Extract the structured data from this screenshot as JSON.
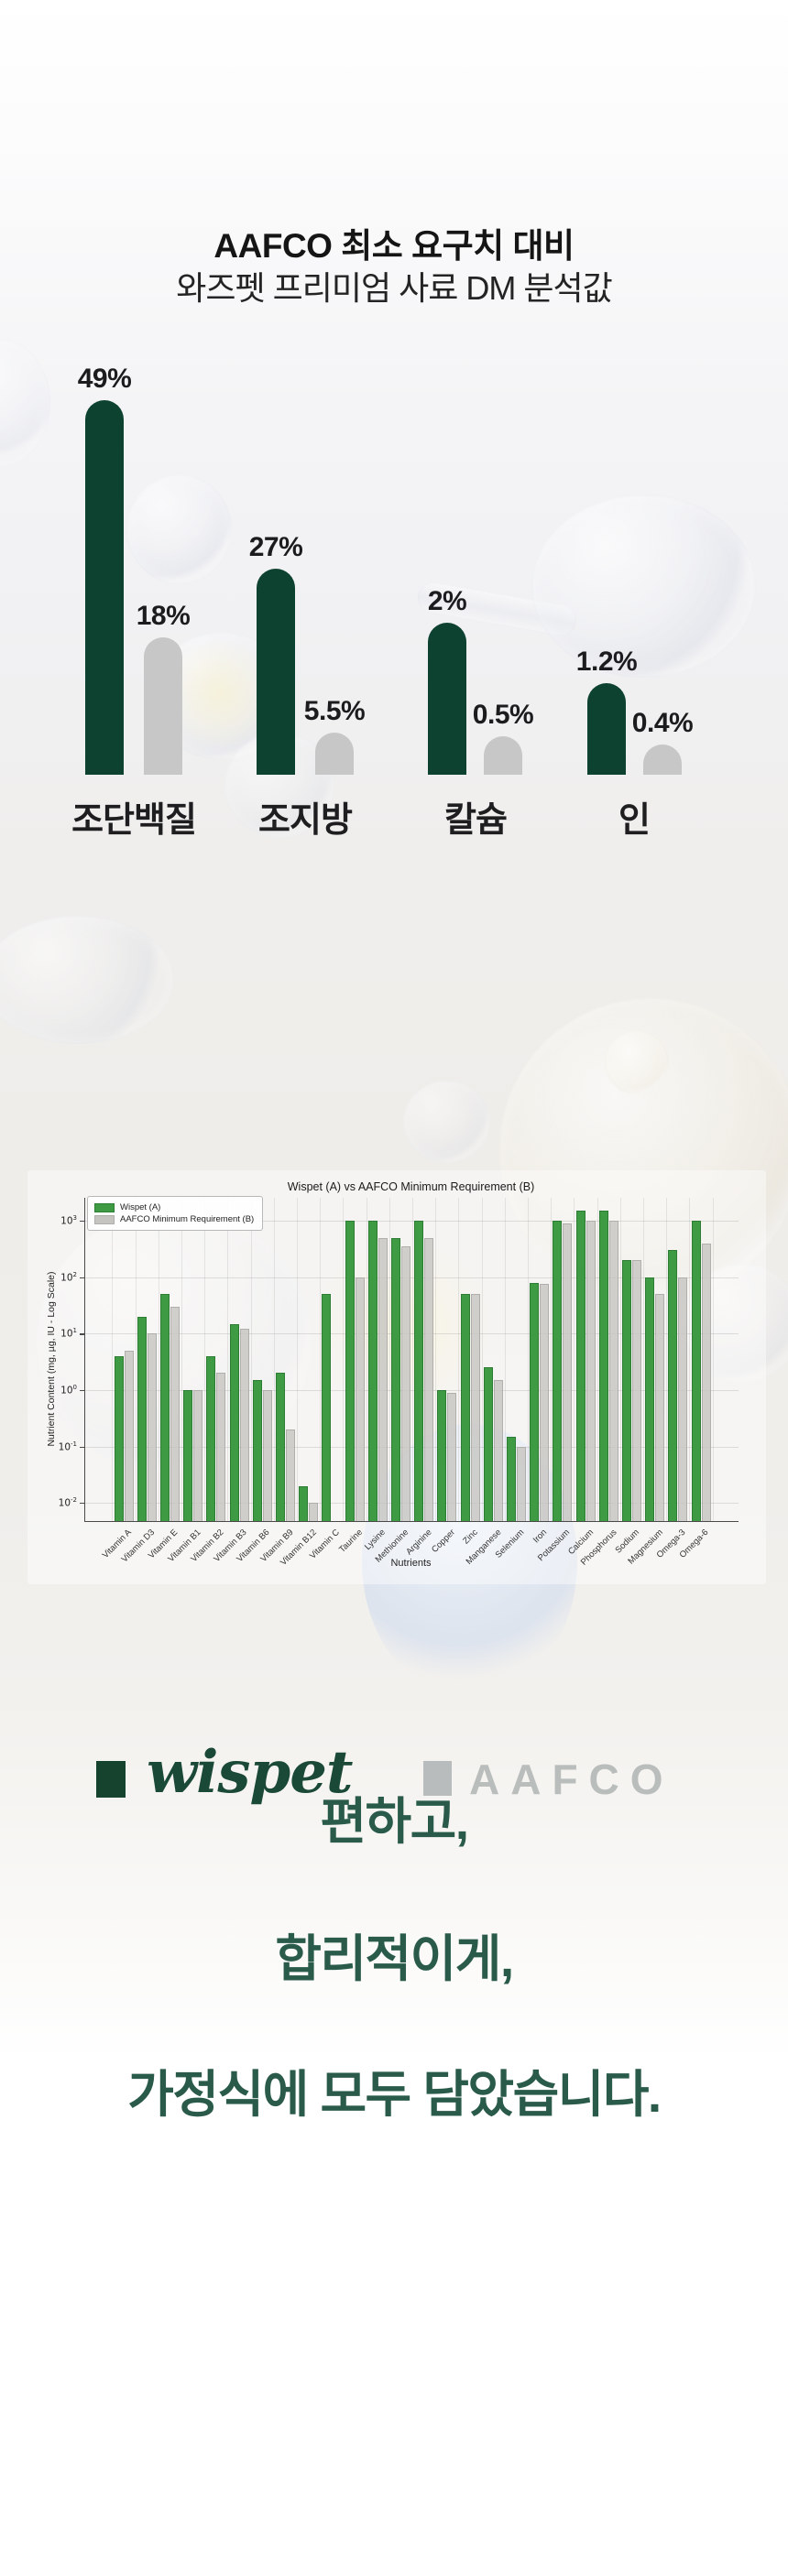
{
  "header": {
    "title_line1": "AAFCO 최소 요구치 대비",
    "title_line2": "와즈펫 프리미엄 사료 DM 분석값"
  },
  "brand_legend": {
    "wispet_label": "wispet",
    "aafco_label": "AAFCO"
  },
  "colors": {
    "wispet_green_dark": "#0e4230",
    "aafco_gray": "#c7c7c7",
    "sci_green": "#3e9b44",
    "sci_gray": "#c5c4c1",
    "footer_green": "#2a5b4a"
  },
  "chart_data": [
    {
      "type": "bar",
      "title": "",
      "categories": [
        "조단백질",
        "조지방",
        "칼슘",
        "인"
      ],
      "unit": "%",
      "legend_position": "below",
      "series": [
        {
          "name": "wispet",
          "color": "#0e4230",
          "values": [
            49,
            27,
            2,
            1.2
          ],
          "labels": [
            "49%",
            "27%",
            "2%",
            "1.2%"
          ]
        },
        {
          "name": "AAFCO",
          "color": "#c7c7c7",
          "values": [
            18,
            5.5,
            0.5,
            0.4
          ],
          "labels": [
            "18%",
            "5.5%",
            "0.5%",
            "0.4%"
          ]
        }
      ]
    },
    {
      "type": "bar",
      "scale": "log",
      "title": "Wispet (A) vs AAFCO Minimum Requirement (B)",
      "xlabel": "Nutrients",
      "ylabel": "Nutrient Content (mg, µg, IU - Log Scale)",
      "ylim": [
        0.005,
        2500
      ],
      "ytick_exponents": [
        3,
        2,
        1,
        0,
        -1,
        -2
      ],
      "grid": true,
      "legend_position": "upper left",
      "categories": [
        "Vitamin A",
        "Vitamin D3",
        "Vitamin E",
        "Vitamin B1",
        "Vitamin B2",
        "Vitamin B3",
        "Vitamin B6",
        "Vitamin B9",
        "Vitamin B12",
        "Vitamin C",
        "Taurine",
        "Lysine",
        "Methionine",
        "Arginine",
        "Copper",
        "Zinc",
        "Manganese",
        "Selenium",
        "Iron",
        "Potassium",
        "Calcium",
        "Phosphorus",
        "Sodium",
        "Magnesium",
        "Omega-3",
        "Omega-6"
      ],
      "series": [
        {
          "name": "Wispet (A)",
          "color": "#3e9b44",
          "values": [
            4,
            20,
            50,
            1,
            4,
            15,
            1.5,
            2,
            0.02,
            50,
            1000,
            1000,
            500,
            1000,
            1,
            50,
            2.5,
            0.15,
            80,
            1000,
            1500,
            1500,
            200,
            100,
            300,
            1000
          ]
        },
        {
          "name": "AAFCO Minimum Requirement (B)",
          "color": "#c5c4c1",
          "values": [
            5,
            10,
            30,
            1,
            2,
            12,
            1,
            0.2,
            0.01,
            null,
            100,
            500,
            350,
            500,
            0.9,
            50,
            1.5,
            0.1,
            75,
            900,
            1000,
            1000,
            200,
            50,
            100,
            400
          ]
        }
      ]
    }
  ],
  "footer": {
    "line1": "편하고,",
    "line2": "합리적이게,",
    "line3": "가정식에 모두 담았습니다."
  }
}
